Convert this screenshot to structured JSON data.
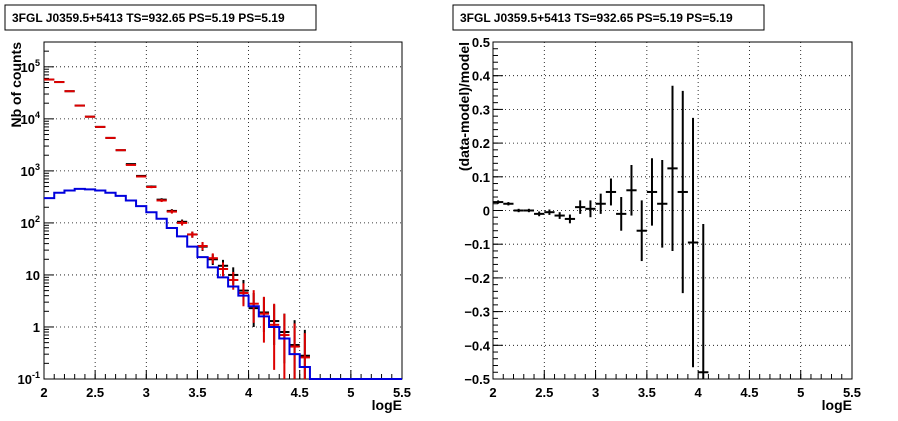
{
  "chart_data": [
    {
      "type": "line",
      "title": "3FGL J0359.5+5413 TS=932.65 PS=5.19 PS=5.19",
      "xlabel": "logE",
      "ylabel": "Nb of counts",
      "xlim": [
        2,
        5.5
      ],
      "ylim": [
        0.1,
        300000
      ],
      "yscale": "log",
      "grid": true,
      "x_ticks": [
        "2",
        "2.5",
        "3",
        "3.5",
        "4",
        "4.5",
        "5",
        "5.5"
      ],
      "y_ticks": [
        "10^-1",
        "1",
        "10",
        "10^2",
        "10^3",
        "10^4",
        "10^5"
      ],
      "colors": {
        "data": "#000000",
        "model": "#dd0000",
        "component": "#0000dd"
      },
      "bin_width": 0.1,
      "series": [
        {
          "role": "data",
          "x": [
            2.05,
            2.15,
            2.25,
            2.35,
            2.45,
            2.55,
            2.65,
            2.75,
            2.85,
            2.95,
            3.05,
            3.15,
            3.25,
            3.35,
            3.45,
            3.55,
            3.65,
            3.75,
            3.85,
            3.95,
            4.05,
            4.15,
            4.25,
            4.35,
            4.45,
            4.55
          ],
          "y": [
            57000,
            51000,
            34000,
            18000,
            11000,
            7000,
            4300,
            2500,
            1350,
            800,
            500,
            280,
            170,
            105,
            60,
            35,
            20,
            15,
            10,
            5,
            2.3,
            1.9,
            1.3,
            0.8,
            0.45,
            0.28
          ],
          "err_lo": [
            300,
            280,
            200,
            140,
            110,
            90,
            70,
            55,
            40,
            30,
            25,
            18,
            14,
            11,
            8,
            6,
            4.5,
            4,
            3.5,
            2.3,
            1.3,
            1.1,
            0.85,
            0.6,
            0.4,
            0.25
          ],
          "err_hi": [
            300,
            280,
            200,
            140,
            110,
            90,
            70,
            55,
            40,
            30,
            25,
            18,
            14,
            11,
            8,
            7,
            5,
            4.5,
            4,
            3,
            2.2,
            1.8,
            1.4,
            1,
            0.9,
            0.6
          ]
        },
        {
          "role": "model",
          "x": [
            2.05,
            2.15,
            2.25,
            2.35,
            2.45,
            2.55,
            2.65,
            2.75,
            2.85,
            2.95,
            3.05,
            3.15,
            3.25,
            3.35,
            3.45,
            3.55,
            3.65,
            3.75,
            3.85,
            3.95,
            4.05,
            4.15,
            4.25,
            4.35,
            4.45,
            4.55
          ],
          "y": [
            57000,
            51000,
            34000,
            18000,
            11000,
            7000,
            4300,
            2500,
            1300,
            780,
            490,
            270,
            165,
            100,
            60,
            36,
            21,
            13,
            8,
            4.5,
            2.8,
            1.8,
            1.1,
            0.7,
            0.42,
            0.26
          ],
          "err_lo": [
            300,
            280,
            200,
            140,
            110,
            90,
            70,
            55,
            40,
            30,
            25,
            18,
            14,
            11,
            8,
            6,
            4.5,
            3.6,
            2.8,
            2,
            1.6,
            1.3,
            0.95,
            0.6,
            0.35,
            0.2
          ],
          "err_hi": [
            300,
            280,
            200,
            140,
            110,
            90,
            70,
            55,
            40,
            30,
            25,
            18,
            14,
            11,
            8,
            7,
            5,
            4.4,
            3.4,
            2.4,
            2.3,
            2,
            1.7,
            1.1,
            0.75,
            0.5
          ]
        },
        {
          "role": "component",
          "x": [
            2.0,
            2.1,
            2.2,
            2.3,
            2.4,
            2.5,
            2.6,
            2.7,
            2.8,
            2.9,
            3.0,
            3.1,
            3.2,
            3.3,
            3.4,
            3.5,
            3.6,
            3.7,
            3.8,
            3.9,
            4.0,
            4.1,
            4.2,
            4.3,
            4.4,
            4.5,
            4.6,
            4.7,
            4.8,
            4.9,
            5.0,
            5.1,
            5.2,
            5.3,
            5.4
          ],
          "y": [
            300,
            380,
            420,
            450,
            440,
            420,
            380,
            330,
            270,
            210,
            160,
            120,
            80,
            55,
            35,
            22,
            14,
            9,
            6,
            4,
            2.5,
            1.6,
            1.0,
            0.6,
            0.3,
            0.17,
            0.1,
            0.1,
            0.1,
            0.1,
            0.1,
            0.1,
            0.1,
            0.1,
            0.1
          ]
        }
      ]
    },
    {
      "type": "scatter",
      "title": "3FGL J0359.5+5413 TS=932.65 PS=5.19 PS=5.19",
      "xlabel": "logE",
      "ylabel": "(data-model)/model",
      "xlim": [
        2,
        5.5
      ],
      "ylim": [
        -0.5,
        0.5
      ],
      "grid": true,
      "x_ticks": [
        "2",
        "2.5",
        "3",
        "3.5",
        "4",
        "4.5",
        "5",
        "5.5"
      ],
      "y_ticks": [
        "−0.5",
        "−0.4",
        "−0.3",
        "−0.2",
        "−0.1",
        "0",
        "0.1",
        "0.2",
        "0.3",
        "0.4",
        "0.5"
      ],
      "colors": {
        "points": "#000000"
      },
      "bin_width": 0.1,
      "series": [
        {
          "x": [
            2.05,
            2.15,
            2.25,
            2.35,
            2.45,
            2.55,
            2.65,
            2.75,
            2.85,
            2.95,
            3.05,
            3.15,
            3.25,
            3.35,
            3.45,
            3.55,
            3.65,
            3.75,
            3.85,
            3.95,
            4.05
          ],
          "y": [
            0.025,
            0.02,
            0.0,
            0.0,
            -0.01,
            -0.005,
            -0.015,
            -0.025,
            0.01,
            0.005,
            0.02,
            0.055,
            -0.01,
            0.06,
            -0.06,
            0.055,
            0.02,
            0.125,
            0.055,
            -0.095,
            -0.48
          ],
          "err": [
            0.005,
            0.005,
            0.005,
            0.005,
            0.007,
            0.008,
            0.01,
            0.013,
            0.02,
            0.025,
            0.03,
            0.04,
            0.05,
            0.075,
            0.09,
            0.1,
            0.13,
            0.245,
            0.3,
            0.37,
            0.44
          ]
        }
      ]
    }
  ]
}
